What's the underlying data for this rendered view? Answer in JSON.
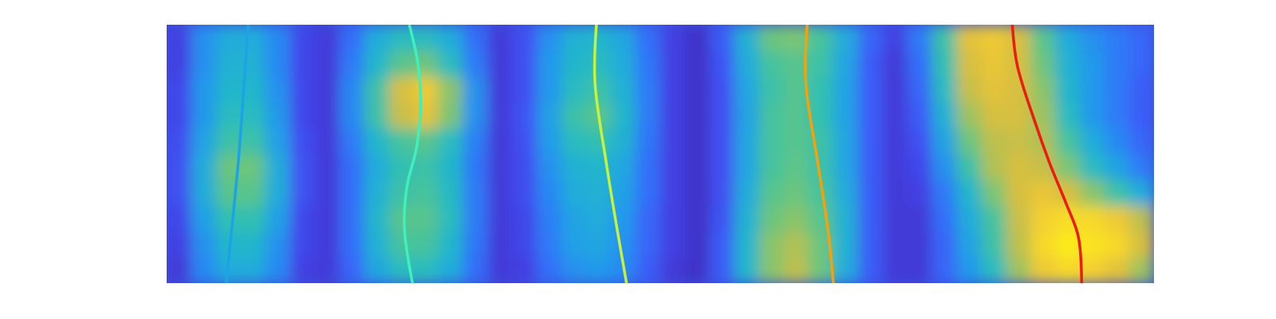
{
  "chart_data": {
    "type": "heatmap",
    "xlim": [
      0,
      40
    ],
    "ylim": [
      0,
      10
    ],
    "tick_labels": false,
    "heatmap": {
      "x_bins": [
        0,
        1,
        2,
        3,
        4,
        5,
        6,
        7,
        8,
        9,
        10,
        11,
        12,
        13,
        14,
        15,
        16,
        17,
        18,
        19,
        20,
        21,
        22,
        23,
        24,
        25,
        26,
        27,
        28,
        29,
        30,
        31,
        32,
        33,
        34,
        35,
        36,
        37,
        38,
        39,
        40
      ],
      "y_bins": [
        0,
        1,
        2,
        3,
        4,
        5,
        6,
        7,
        8,
        9,
        10
      ],
      "clim": [
        0,
        1
      ],
      "z": [
        [
          0.08,
          0.28,
          0.38,
          0.38,
          0.28,
          0.1,
          0.08,
          0.2,
          0.36,
          0.45,
          0.45,
          0.38,
          0.22,
          0.08,
          0.1,
          0.22,
          0.3,
          0.32,
          0.28,
          0.18,
          0.08,
          0.05,
          0.18,
          0.42,
          0.62,
          0.7,
          0.58,
          0.38,
          0.18,
          0.08,
          0.08,
          0.2,
          0.32,
          0.45,
          0.65,
          0.82,
          0.88,
          0.85,
          0.78,
          0.65
        ],
        [
          0.1,
          0.3,
          0.42,
          0.42,
          0.3,
          0.12,
          0.08,
          0.22,
          0.4,
          0.52,
          0.52,
          0.42,
          0.24,
          0.08,
          0.12,
          0.25,
          0.34,
          0.36,
          0.3,
          0.2,
          0.1,
          0.05,
          0.18,
          0.42,
          0.62,
          0.68,
          0.58,
          0.4,
          0.18,
          0.08,
          0.08,
          0.2,
          0.35,
          0.5,
          0.7,
          0.88,
          0.95,
          0.92,
          0.88,
          0.75
        ],
        [
          0.12,
          0.34,
          0.48,
          0.48,
          0.34,
          0.12,
          0.08,
          0.22,
          0.42,
          0.55,
          0.55,
          0.45,
          0.25,
          0.08,
          0.12,
          0.26,
          0.35,
          0.38,
          0.32,
          0.2,
          0.1,
          0.05,
          0.16,
          0.4,
          0.58,
          0.62,
          0.55,
          0.4,
          0.18,
          0.08,
          0.08,
          0.22,
          0.38,
          0.52,
          0.72,
          0.85,
          0.9,
          0.88,
          0.82,
          0.7
        ],
        [
          0.15,
          0.38,
          0.55,
          0.55,
          0.38,
          0.15,
          0.08,
          0.22,
          0.4,
          0.5,
          0.52,
          0.44,
          0.25,
          0.08,
          0.14,
          0.28,
          0.38,
          0.4,
          0.34,
          0.22,
          0.1,
          0.05,
          0.15,
          0.38,
          0.55,
          0.58,
          0.52,
          0.38,
          0.18,
          0.08,
          0.1,
          0.25,
          0.42,
          0.6,
          0.75,
          0.8,
          0.75,
          0.62,
          0.5,
          0.38
        ],
        [
          0.15,
          0.38,
          0.58,
          0.58,
          0.38,
          0.15,
          0.08,
          0.22,
          0.38,
          0.48,
          0.5,
          0.42,
          0.24,
          0.08,
          0.14,
          0.3,
          0.4,
          0.42,
          0.36,
          0.22,
          0.1,
          0.05,
          0.15,
          0.36,
          0.52,
          0.56,
          0.5,
          0.36,
          0.18,
          0.08,
          0.12,
          0.3,
          0.5,
          0.68,
          0.75,
          0.72,
          0.6,
          0.45,
          0.35,
          0.25
        ],
        [
          0.14,
          0.35,
          0.5,
          0.5,
          0.34,
          0.14,
          0.08,
          0.25,
          0.42,
          0.52,
          0.55,
          0.45,
          0.26,
          0.08,
          0.15,
          0.33,
          0.45,
          0.48,
          0.4,
          0.24,
          0.1,
          0.05,
          0.15,
          0.36,
          0.52,
          0.55,
          0.5,
          0.36,
          0.18,
          0.08,
          0.15,
          0.35,
          0.58,
          0.7,
          0.72,
          0.68,
          0.52,
          0.38,
          0.28,
          0.2
        ],
        [
          0.12,
          0.32,
          0.45,
          0.45,
          0.32,
          0.12,
          0.08,
          0.28,
          0.5,
          0.72,
          0.78,
          0.6,
          0.3,
          0.08,
          0.16,
          0.34,
          0.5,
          0.55,
          0.42,
          0.25,
          0.1,
          0.05,
          0.15,
          0.35,
          0.52,
          0.55,
          0.48,
          0.35,
          0.18,
          0.08,
          0.18,
          0.4,
          0.65,
          0.75,
          0.75,
          0.65,
          0.45,
          0.32,
          0.25,
          0.18
        ],
        [
          0.12,
          0.32,
          0.42,
          0.42,
          0.3,
          0.12,
          0.08,
          0.28,
          0.5,
          0.75,
          0.82,
          0.62,
          0.3,
          0.08,
          0.15,
          0.32,
          0.45,
          0.5,
          0.4,
          0.25,
          0.1,
          0.05,
          0.15,
          0.36,
          0.5,
          0.55,
          0.48,
          0.35,
          0.18,
          0.08,
          0.2,
          0.45,
          0.72,
          0.78,
          0.75,
          0.62,
          0.42,
          0.32,
          0.25,
          0.18
        ],
        [
          0.1,
          0.3,
          0.4,
          0.4,
          0.28,
          0.12,
          0.08,
          0.25,
          0.42,
          0.55,
          0.58,
          0.45,
          0.25,
          0.08,
          0.15,
          0.32,
          0.42,
          0.45,
          0.38,
          0.24,
          0.1,
          0.05,
          0.16,
          0.38,
          0.52,
          0.55,
          0.5,
          0.36,
          0.18,
          0.08,
          0.22,
          0.48,
          0.75,
          0.8,
          0.75,
          0.58,
          0.4,
          0.32,
          0.25,
          0.2
        ],
        [
          0.1,
          0.3,
          0.38,
          0.38,
          0.28,
          0.12,
          0.08,
          0.22,
          0.38,
          0.45,
          0.45,
          0.38,
          0.22,
          0.08,
          0.15,
          0.3,
          0.4,
          0.42,
          0.36,
          0.22,
          0.1,
          0.05,
          0.18,
          0.4,
          0.58,
          0.6,
          0.52,
          0.38,
          0.2,
          0.1,
          0.25,
          0.5,
          0.78,
          0.82,
          0.75,
          0.55,
          0.38,
          0.3,
          0.25,
          0.2
        ]
      ]
    },
    "series": [
      {
        "type": "line",
        "color": "#1ca3e6",
        "x": [
          2.41,
          2.68,
          2.93,
          3.12,
          3.3
        ],
        "values": [
          0,
          2.5,
          5,
          7.5,
          10
        ]
      },
      {
        "type": "line",
        "color": "#3ff0bc",
        "x": [
          9.96,
          9.63,
          9.73,
          10.13,
          10.29,
          10.19,
          9.83
        ],
        "values": [
          0,
          2.14,
          3.71,
          5.28,
          6.86,
          8.43,
          10
        ]
      },
      {
        "type": "line",
        "color": "#c6f23c",
        "x": [
          18.63,
          18.24,
          17.81,
          17.35,
          17.41
        ],
        "values": [
          0,
          2.14,
          4.65,
          7.8,
          10
        ]
      },
      {
        "type": "line",
        "color": "#f6a10a",
        "x": [
          27.01,
          26.78,
          26.38,
          25.89,
          25.95
        ],
        "values": [
          0,
          2.14,
          4.65,
          7.8,
          10
        ]
      },
      {
        "type": "line",
        "color": "#ec1c0e",
        "x": [
          37.07,
          36.93,
          36.44,
          35.77,
          35.18,
          34.46,
          34.26
        ],
        "values": [
          0,
          1.82,
          3.08,
          4.65,
          6.23,
          8.43,
          10
        ]
      }
    ]
  }
}
